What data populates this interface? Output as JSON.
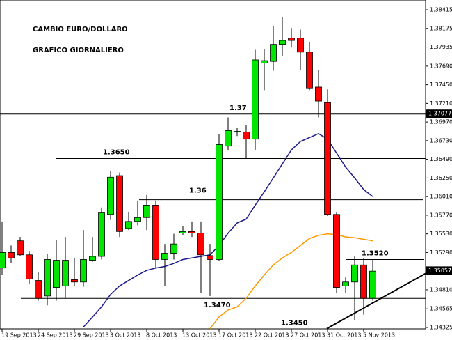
{
  "chart_data": {
    "type": "candlestick",
    "texts": [
      "CAMBIO EURO/DOLLARO",
      "GRAFICO GIORNALIERO"
    ],
    "categories": [
      "19 Sep 2013",
      null,
      null,
      null,
      "24 Sep 2013",
      null,
      null,
      null,
      "29 Sep 2013",
      null,
      null,
      null,
      "3 Oct 2013",
      null,
      null,
      null,
      "8 Oct 2013",
      null,
      null,
      null,
      "13 Oct 2013",
      null,
      null,
      null,
      "17 Oct 2013",
      null,
      null,
      null,
      "22 Oct 2013",
      null,
      null,
      null,
      "27 Oct 2013",
      null,
      null,
      null,
      "31 Oct 2013",
      null,
      null,
      null,
      "5 Nov 2013",
      null
    ],
    "open": [
      1.3509,
      1.3529,
      1.3544,
      1.3526,
      1.3493,
      1.3473,
      1.3484,
      1.3486,
      1.3494,
      1.3491,
      1.3519,
      1.3524,
      1.3578,
      1.3628,
      1.356,
      1.3569,
      1.3574,
      1.359,
      1.352,
      1.3528,
      1.3554,
      1.3556,
      1.3554,
      1.3525,
      1.352,
      1.3666,
      1.3684,
      1.3684,
      1.3675,
      1.3773,
      1.3775,
      1.3797,
      1.3805,
      1.3805,
      1.3787,
      1.3742,
      1.3722,
      1.3578,
      1.3486,
      1.3491,
      1.3513,
      1.347
    ],
    "high": [
      1.3569,
      1.3538,
      1.3549,
      1.3531,
      1.3504,
      1.3527,
      1.3545,
      1.3549,
      1.3522,
      1.3558,
      1.3549,
      1.3587,
      1.3634,
      1.3632,
      1.3581,
      1.3596,
      1.3603,
      1.3596,
      1.354,
      1.3553,
      1.3563,
      1.3569,
      1.3569,
      1.354,
      1.3681,
      1.3703,
      1.3689,
      1.3693,
      1.379,
      1.3791,
      1.382,
      1.3832,
      1.3818,
      1.3816,
      1.38,
      1.3764,
      1.3739,
      1.3581,
      1.3497,
      1.3524,
      1.3522,
      1.352
    ],
    "low": [
      1.35,
      1.3515,
      1.3524,
      1.3488,
      1.3467,
      1.3461,
      1.3467,
      1.347,
      1.3486,
      1.3485,
      1.3517,
      1.352,
      1.3571,
      1.3549,
      1.3558,
      1.3564,
      1.3558,
      1.3509,
      1.3486,
      1.352,
      1.3551,
      1.3549,
      1.3477,
      1.3473,
      1.3518,
      1.3661,
      1.3679,
      1.365,
      1.3661,
      1.3738,
      1.3763,
      1.3782,
      1.3793,
      1.3764,
      1.3738,
      1.3703,
      1.3576,
      1.3477,
      1.3477,
      1.3442,
      1.3449,
      1.3467
    ],
    "close": [
      1.3529,
      1.3522,
      1.3526,
      1.3495,
      1.347,
      1.352,
      1.3519,
      1.3519,
      1.3491,
      1.352,
      1.3524,
      1.358,
      1.3626,
      1.3556,
      1.3569,
      1.3574,
      1.359,
      1.352,
      1.3528,
      1.354,
      1.3556,
      1.3554,
      1.3526,
      1.352,
      1.3668,
      1.3686,
      1.3685,
      1.3675,
      1.3777,
      1.3776,
      1.3797,
      1.3802,
      1.3802,
      1.3787,
      1.374,
      1.3724,
      1.3578,
      1.3484,
      1.3491,
      1.3513,
      1.347,
      1.3505
    ],
    "up_color": "#00e600",
    "down_color": "#ff0000",
    "lines": [
      {
        "color": "#1a1a8c",
        "values": [
          null,
          null,
          null,
          null,
          null,
          null,
          null,
          null,
          null,
          1.3433,
          1.3446,
          1.3459,
          1.3475,
          1.3486,
          1.3493,
          1.35,
          1.3506,
          1.3509,
          1.3511,
          1.3515,
          1.352,
          1.3522,
          1.3524,
          1.3526,
          1.3538,
          1.3554,
          1.3567,
          1.3572,
          1.359,
          1.3607,
          1.3625,
          1.3643,
          1.3661,
          1.3672,
          1.3677,
          1.3682,
          1.3675,
          1.3657,
          1.3639,
          1.3625,
          1.361,
          1.3601
        ]
      },
      {
        "color": "#ff9900",
        "values": [
          null,
          null,
          null,
          null,
          null,
          null,
          null,
          null,
          null,
          null,
          null,
          null,
          null,
          null,
          null,
          null,
          null,
          null,
          null,
          null,
          null,
          null,
          null,
          1.3431,
          1.3446,
          1.3455,
          1.3459,
          1.347,
          1.3486,
          1.35,
          1.3513,
          1.3522,
          1.3529,
          1.3538,
          1.3547,
          1.3551,
          1.3553,
          1.3552,
          1.3549,
          1.3548,
          1.3546,
          1.3544
        ]
      }
    ],
    "levels": [
      {
        "value": 1.37077,
        "label": "1.37"
      },
      {
        "value": 1.365,
        "label": "1.3650"
      },
      {
        "value": 1.3597,
        "label": "1.36"
      },
      {
        "value": 1.347,
        "label": "1.3470"
      },
      {
        "value": 1.345,
        "label": "1.3450"
      },
      {
        "value": 1.352,
        "label": "1.3520"
      }
    ],
    "trendline": [
      1.3431,
      1.3502
    ],
    "price_markers": [
      1.37077,
      1.35057
    ],
    "ylim": [
      1.34307,
      1.38541
    ],
    "yticks": [
      1.38415,
      1.38175,
      1.37935,
      {
        "value": 1.3769,
        "label": "1.37690"
      },
      {
        "value": 1.3745,
        "label": "1.37450"
      },
      {
        "value": 1.3721,
        "label": "1.37210"
      },
      {
        "value": 1.3697,
        "label": "1.36970"
      },
      {
        "value": 1.3673,
        "label": "1.36730"
      },
      {
        "value": 1.3649,
        "label": "1.36490"
      },
      {
        "value": 1.3625,
        "label": "1.36250"
      },
      {
        "value": 1.3601,
        "label": "1.36010"
      },
      {
        "value": 1.3577,
        "label": "1.35770"
      },
      {
        "value": 1.3553,
        "label": "1.35530"
      },
      {
        "value": 1.3529,
        "label": "1.35290"
      },
      {
        "value": 1.3481,
        "label": "1.34810"
      },
      1.34565,
      1.34325
    ]
  }
}
